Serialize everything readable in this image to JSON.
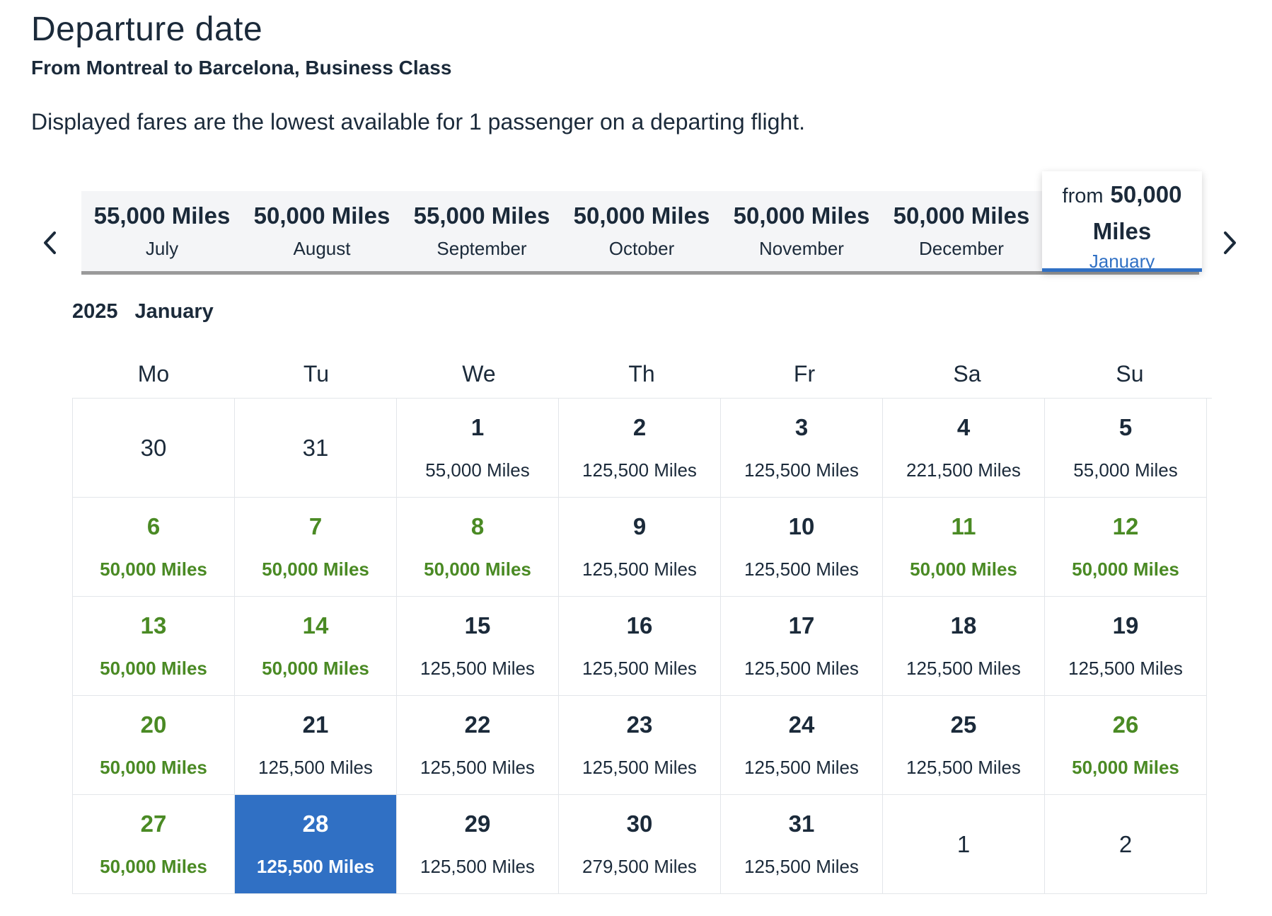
{
  "page": {
    "title": "Departure date",
    "subtitle": "From Montreal to Barcelona, Business Class",
    "description": "Displayed fares are the lowest available for 1 passenger on a departing flight."
  },
  "months": [
    {
      "price": "55,000 Miles",
      "name": "July"
    },
    {
      "price": "50,000 Miles",
      "name": "August"
    },
    {
      "price": "55,000 Miles",
      "name": "September"
    },
    {
      "price": "50,000 Miles",
      "name": "October"
    },
    {
      "price": "50,000 Miles",
      "name": "November"
    },
    {
      "price": "50,000 Miles",
      "name": "December"
    },
    {
      "from": "from",
      "price": "50,000",
      "unit": "Miles",
      "name": "January"
    }
  ],
  "icons": {
    "prev": "chevron-left-icon",
    "next": "chevron-right-icon"
  },
  "calendar": {
    "year": "2025",
    "month": "January",
    "weekdays": [
      "Mo",
      "Tu",
      "We",
      "Th",
      "Fr",
      "Sa",
      "Su"
    ],
    "days": [
      {
        "day": "30",
        "fare": "",
        "state": "outside"
      },
      {
        "day": "31",
        "fare": "",
        "state": "outside"
      },
      {
        "day": "1",
        "fare": "55,000 Miles",
        "state": "normal"
      },
      {
        "day": "2",
        "fare": "125,500 Miles",
        "state": "normal"
      },
      {
        "day": "3",
        "fare": "125,500 Miles",
        "state": "normal"
      },
      {
        "day": "4",
        "fare": "221,500 Miles",
        "state": "normal"
      },
      {
        "day": "5",
        "fare": "55,000 Miles",
        "state": "normal"
      },
      {
        "day": "6",
        "fare": "50,000 Miles",
        "state": "low"
      },
      {
        "day": "7",
        "fare": "50,000 Miles",
        "state": "low"
      },
      {
        "day": "8",
        "fare": "50,000 Miles",
        "state": "low"
      },
      {
        "day": "9",
        "fare": "125,500 Miles",
        "state": "normal"
      },
      {
        "day": "10",
        "fare": "125,500 Miles",
        "state": "normal"
      },
      {
        "day": "11",
        "fare": "50,000 Miles",
        "state": "low"
      },
      {
        "day": "12",
        "fare": "50,000 Miles",
        "state": "low"
      },
      {
        "day": "13",
        "fare": "50,000 Miles",
        "state": "low"
      },
      {
        "day": "14",
        "fare": "50,000 Miles",
        "state": "low"
      },
      {
        "day": "15",
        "fare": "125,500 Miles",
        "state": "normal"
      },
      {
        "day": "16",
        "fare": "125,500 Miles",
        "state": "normal"
      },
      {
        "day": "17",
        "fare": "125,500 Miles",
        "state": "normal"
      },
      {
        "day": "18",
        "fare": "125,500 Miles",
        "state": "normal"
      },
      {
        "day": "19",
        "fare": "125,500 Miles",
        "state": "normal"
      },
      {
        "day": "20",
        "fare": "50,000 Miles",
        "state": "low"
      },
      {
        "day": "21",
        "fare": "125,500 Miles",
        "state": "normal"
      },
      {
        "day": "22",
        "fare": "125,500 Miles",
        "state": "normal"
      },
      {
        "day": "23",
        "fare": "125,500 Miles",
        "state": "normal"
      },
      {
        "day": "24",
        "fare": "125,500 Miles",
        "state": "normal"
      },
      {
        "day": "25",
        "fare": "125,500 Miles",
        "state": "normal"
      },
      {
        "day": "26",
        "fare": "50,000 Miles",
        "state": "low"
      },
      {
        "day": "27",
        "fare": "50,000 Miles",
        "state": "low"
      },
      {
        "day": "28",
        "fare": "125,500 Miles",
        "state": "selected"
      },
      {
        "day": "29",
        "fare": "125,500 Miles",
        "state": "normal"
      },
      {
        "day": "30",
        "fare": "279,500 Miles",
        "state": "normal"
      },
      {
        "day": "31",
        "fare": "125,500 Miles",
        "state": "normal"
      },
      {
        "day": "1",
        "fare": "",
        "state": "outside"
      },
      {
        "day": "2",
        "fare": "",
        "state": "outside"
      }
    ]
  },
  "colors": {
    "accent": "#3070c4",
    "low_fare": "#4a8a24",
    "text": "#1b2a3a",
    "border": "#e3e6ea"
  }
}
